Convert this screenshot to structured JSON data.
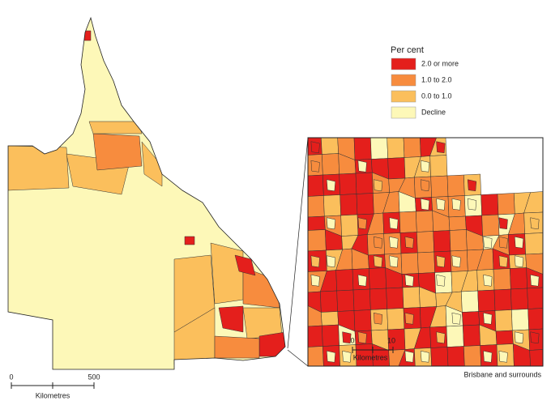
{
  "legend": {
    "title": "Per cent",
    "items": [
      {
        "label": "2.0 or more",
        "color": "#e41f1c"
      },
      {
        "label": "1.0 to 2.0",
        "color": "#f78c3e"
      },
      {
        "label": "0.0 to 1.0",
        "color": "#fbbf5c"
      },
      {
        "label": "Decline",
        "color": "#fdf8b8"
      }
    ]
  },
  "scale_bar": {
    "start": 0,
    "end": 500,
    "unit": "Kilometres"
  },
  "inset": {
    "caption": "Brisbane and surrounds",
    "scale_bar": {
      "start": 0,
      "end": 10,
      "unit": "Kilometres"
    }
  }
}
